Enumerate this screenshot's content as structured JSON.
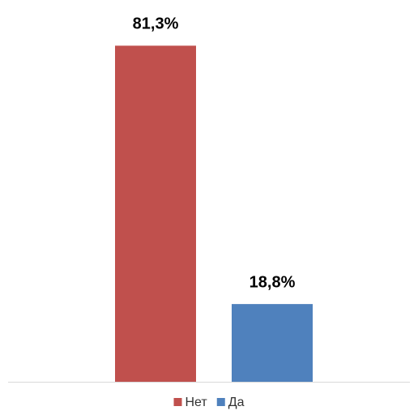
{
  "chart_data": {
    "type": "bar",
    "categories": [
      null
    ],
    "series": [
      {
        "name": "Нет",
        "color": "#c0504d",
        "values": [
          81.3
        ],
        "value_labels": [
          "81,3%"
        ]
      },
      {
        "name": "Да",
        "color": "#4f81bd",
        "values": [
          18.8
        ],
        "value_labels": [
          "18,8%"
        ]
      }
    ],
    "ylim": [
      0,
      90
    ],
    "legend": "bottom"
  }
}
